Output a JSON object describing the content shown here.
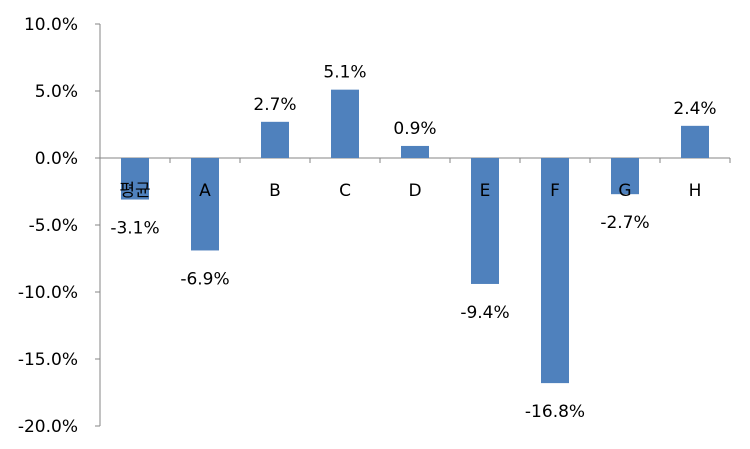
{
  "chart_data": {
    "type": "bar",
    "categories": [
      "평균",
      "A",
      "B",
      "C",
      "D",
      "E",
      "F",
      "G",
      "H"
    ],
    "values": [
      -3.1,
      -6.9,
      2.7,
      5.1,
      0.9,
      -9.4,
      -16.8,
      -2.7,
      2.4
    ],
    "data_labels": [
      "-3.1%",
      "-6.9%",
      "2.7%",
      "5.1%",
      "0.9%",
      "-9.4%",
      "-16.8%",
      "-2.7%",
      "2.4%"
    ],
    "y_ticks": [
      10.0,
      5.0,
      0.0,
      -5.0,
      -10.0,
      -15.0,
      -20.0
    ],
    "y_tick_labels": [
      "10.0%",
      "5.0%",
      "0.0%",
      "-5.0%",
      "-10.0%",
      "-15.0%",
      "-20.0%"
    ],
    "ylim": [
      -20,
      10
    ],
    "grid": false,
    "legend": "none",
    "bar_color": "#4f81bd",
    "title": "",
    "xlabel": "",
    "ylabel": ""
  }
}
